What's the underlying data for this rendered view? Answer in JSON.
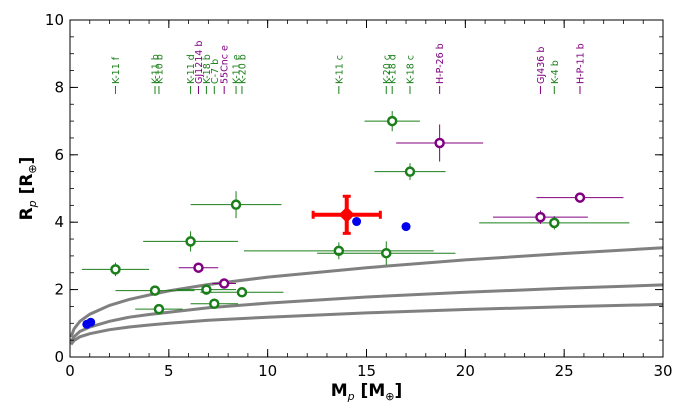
{
  "chart_data": {
    "type": "scatter",
    "title": "",
    "xlabel": "M",
    "xlabel_sub": "p",
    "xlabel_unit_open": " [M",
    "xlabel_unit_sub": "⊕",
    "xlabel_unit_close": "]",
    "ylabel": "R",
    "ylabel_sub": "p",
    "ylabel_unit_open": " [R",
    "ylabel_unit_sub": "⊕",
    "ylabel_unit_close": "]",
    "xlim": [
      0,
      30
    ],
    "ylim": [
      0,
      10
    ],
    "xticks": [
      0,
      5,
      10,
      15,
      20,
      25,
      30
    ],
    "yticks": [
      0,
      2,
      4,
      6,
      8,
      10
    ],
    "colors": {
      "green": "#1a7f1a",
      "purple": "#800080",
      "blue": "#0000ee",
      "red": "#ff0000",
      "curve": "#808080"
    },
    "curves": [
      {
        "name": "upper",
        "points": [
          [
            0.05,
            0.59
          ],
          [
            0.2,
            0.83
          ],
          [
            0.5,
            1.06
          ],
          [
            1,
            1.27
          ],
          [
            2,
            1.53
          ],
          [
            3,
            1.71
          ],
          [
            4,
            1.84
          ],
          [
            5,
            1.96
          ],
          [
            7,
            2.15
          ],
          [
            10,
            2.37
          ],
          [
            15,
            2.65
          ],
          [
            20,
            2.88
          ],
          [
            25,
            3.07
          ],
          [
            30,
            3.24
          ]
        ]
      },
      {
        "name": "middle",
        "points": [
          [
            0.05,
            0.45
          ],
          [
            0.2,
            0.6
          ],
          [
            0.5,
            0.76
          ],
          [
            1,
            0.89
          ],
          [
            2,
            1.06
          ],
          [
            3,
            1.18
          ],
          [
            4,
            1.26
          ],
          [
            5,
            1.33
          ],
          [
            7,
            1.46
          ],
          [
            10,
            1.6
          ],
          [
            15,
            1.78
          ],
          [
            20,
            1.92
          ],
          [
            25,
            2.04
          ],
          [
            30,
            2.14
          ]
        ]
      },
      {
        "name": "lower",
        "points": [
          [
            0.05,
            0.37
          ],
          [
            0.2,
            0.49
          ],
          [
            0.5,
            0.6
          ],
          [
            1,
            0.69
          ],
          [
            2,
            0.81
          ],
          [
            3,
            0.89
          ],
          [
            4,
            0.95
          ],
          [
            5,
            1.0
          ],
          [
            7,
            1.09
          ],
          [
            10,
            1.18
          ],
          [
            15,
            1.31
          ],
          [
            20,
            1.41
          ],
          [
            25,
            1.49
          ],
          [
            30,
            1.56
          ]
        ]
      }
    ],
    "green_points": [
      {
        "x": 2.3,
        "y": 2.6,
        "xerr": 1.7,
        "yerr": 0.2
      },
      {
        "x": 4.3,
        "y": 1.97,
        "xerr": 2.0,
        "yerr": 0.1
      },
      {
        "x": 4.5,
        "y": 1.42,
        "xerr": 1.2,
        "yerr": 0.12
      },
      {
        "x": 6.1,
        "y": 3.43,
        "xerr": 2.4,
        "yerr": 0.3
      },
      {
        "x": 6.9,
        "y": 2.0,
        "xerr": 1.5,
        "yerr": 0.12
      },
      {
        "x": 7.3,
        "y": 1.58,
        "xerr": 1.2,
        "yerr": 0.1
      },
      {
        "x": 8.4,
        "y": 4.52,
        "xerr": 2.3,
        "yerr": 0.4
      },
      {
        "x": 8.7,
        "y": 1.92,
        "xerr": 2.1,
        "yerr": 0.12
      },
      {
        "x": 13.6,
        "y": 3.15,
        "xerr": 4.8,
        "yerr": 0.25
      },
      {
        "x": 16.0,
        "y": 3.08,
        "xerr": 3.5,
        "yerr": 0.35
      },
      {
        "x": 16.3,
        "y": 7.0,
        "xerr": 1.4,
        "yerr": 0.3
      },
      {
        "x": 17.2,
        "y": 5.5,
        "xerr": 1.8,
        "yerr": 0.25
      },
      {
        "x": 24.5,
        "y": 3.98,
        "xerr": 3.8,
        "yerr": 0.2
      }
    ],
    "purple_points": [
      {
        "x": 6.5,
        "y": 2.65,
        "xerr": 1.0,
        "yerr": 0.12
      },
      {
        "x": 7.8,
        "y": 2.18,
        "xerr": 0.6,
        "yerr": 0.1
      },
      {
        "x": 18.7,
        "y": 6.35,
        "xerr": 2.2,
        "yerr": 0.55
      },
      {
        "x": 23.8,
        "y": 4.15,
        "xerr": 2.4,
        "yerr": 0.2
      },
      {
        "x": 25.8,
        "y": 4.73,
        "xerr": 2.2,
        "yerr": 0.15
      }
    ],
    "blue_points": [
      {
        "x": 0.85,
        "y": 0.97
      },
      {
        "x": 1.05,
        "y": 1.03
      },
      {
        "x": 14.5,
        "y": 4.02
      },
      {
        "x": 17.0,
        "y": 3.87
      }
    ],
    "highlight": {
      "x": 14.0,
      "y": 4.22,
      "xerr": 1.7,
      "yerr": 0.55
    },
    "planet_labels": [
      {
        "text": "K-11 f",
        "x": 2.3,
        "color": "green"
      },
      {
        "text": "K-11 b",
        "x": 4.3,
        "color": "green"
      },
      {
        "text": "K-10 b",
        "x": 4.5,
        "color": "green"
      },
      {
        "text": "K-11 d",
        "x": 6.1,
        "color": "green"
      },
      {
        "text": "GJ1214 b",
        "x": 6.5,
        "color": "purple"
      },
      {
        "text": "K-18 b",
        "x": 6.9,
        "color": "green"
      },
      {
        "text": "C-7 b",
        "x": 7.3,
        "color": "green"
      },
      {
        "text": "55Cnc e",
        "x": 7.8,
        "color": "purple"
      },
      {
        "text": "K-11 e",
        "x": 8.4,
        "color": "green"
      },
      {
        "text": "K-20 b",
        "x": 8.7,
        "color": "green"
      },
      {
        "text": "K-11 c",
        "x": 13.6,
        "color": "green"
      },
      {
        "text": "K-20 c",
        "x": 16.0,
        "color": "green"
      },
      {
        "text": "K-18 d",
        "x": 16.3,
        "color": "green"
      },
      {
        "text": "K-18 c",
        "x": 17.2,
        "color": "green"
      },
      {
        "text": "H-P-26 b",
        "x": 18.7,
        "color": "purple"
      },
      {
        "text": "GJ436 b",
        "x": 23.8,
        "color": "purple"
      },
      {
        "text": "K-4 b",
        "x": 24.5,
        "color": "green"
      },
      {
        "text": "H-P-11 b",
        "x": 25.8,
        "color": "purple"
      }
    ],
    "grid": false,
    "legend": "none"
  }
}
